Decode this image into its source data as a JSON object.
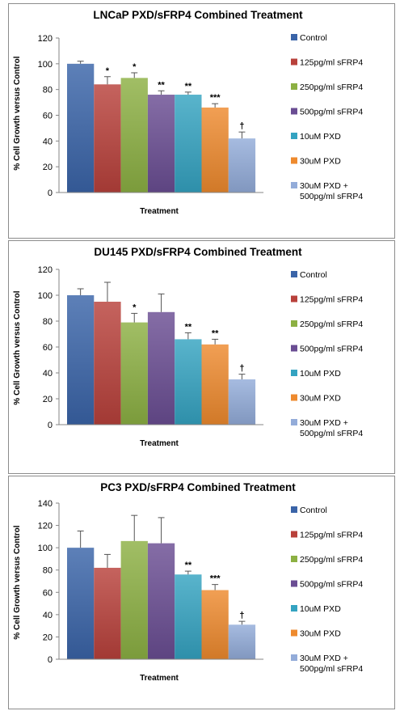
{
  "legend": [
    {
      "label": "Control",
      "color": "#3a64a8"
    },
    {
      "label": "125pg/ml sFRP4",
      "color": "#b8413b"
    },
    {
      "label": "250pg/ml sFRP4",
      "color": "#8cb043"
    },
    {
      "label": "500pg/ml sFRP4",
      "color": "#6a4d93"
    },
    {
      "label": "10uM PXD",
      "color": "#34a3c1"
    },
    {
      "label": "30uM PXD",
      "color": "#ee8a2e"
    },
    {
      "label": "30uM PXD +",
      "label2": "500pg/ml sFRP4",
      "color": "#93acd9"
    }
  ],
  "chart_data": [
    {
      "type": "bar",
      "title": "LNCaP PXD/sFRP4 Combined Treatment",
      "xlabel": "Treatment",
      "ylabel": "% Cell Growth versus Control",
      "ylim": [
        0,
        120
      ],
      "yticks": [
        0,
        20,
        40,
        60,
        80,
        100,
        120
      ],
      "grid": false,
      "legend_position": "right",
      "categories": [
        "Control",
        "125pg/ml sFRP4",
        "250pg/ml sFRP4",
        "500pg/ml sFRP4",
        "10uM PXD",
        "30uM PXD",
        "30uM PXD + 500pg/ml sFRP4"
      ],
      "values": [
        100,
        84,
        89,
        76,
        76,
        66,
        42
      ],
      "errors": [
        2,
        6,
        4,
        3,
        2,
        3,
        5
      ],
      "annotations": [
        "",
        "*",
        "*",
        "**",
        "**",
        "***",
        "†"
      ]
    },
    {
      "type": "bar",
      "title": "DU145 PXD/sFRP4 Combined Treatment",
      "xlabel": "Treatment",
      "ylabel": "% Cell Growth versus Control",
      "ylim": [
        0,
        120
      ],
      "yticks": [
        0,
        20,
        40,
        60,
        80,
        100,
        120
      ],
      "grid": false,
      "legend_position": "right",
      "categories": [
        "Control",
        "125pg/ml sFRP4",
        "250pg/ml sFRP4",
        "500pg/ml sFRP4",
        "10uM PXD",
        "30uM PXD",
        "30uM PXD + 500pg/ml sFRP4"
      ],
      "values": [
        100,
        95,
        79,
        87,
        66,
        62,
        35
      ],
      "errors": [
        5,
        15,
        7,
        14,
        5,
        4,
        4
      ],
      "annotations": [
        "",
        "",
        "*",
        "",
        "**",
        "**",
        "†"
      ]
    },
    {
      "type": "bar",
      "title": "PC3 PXD/sFRP4 Combined Treatment",
      "xlabel": "Treatment",
      "ylabel": "% Cell Growth versus Control",
      "ylim": [
        0,
        140
      ],
      "yticks": [
        0,
        20,
        40,
        60,
        80,
        100,
        120,
        140
      ],
      "grid": false,
      "legend_position": "right",
      "categories": [
        "Control",
        "125pg/ml sFRP4",
        "250pg/ml sFRP4",
        "500pg/ml sFRP4",
        "10uM PXD",
        "30uM PXD",
        "30uM PXD + 500pg/ml sFRP4"
      ],
      "values": [
        100,
        82,
        106,
        104,
        76,
        62,
        31
      ],
      "errors": [
        15,
        12,
        23,
        23,
        3,
        5,
        3
      ],
      "annotations": [
        "",
        "",
        "",
        "",
        "**",
        "***",
        "†"
      ]
    }
  ]
}
